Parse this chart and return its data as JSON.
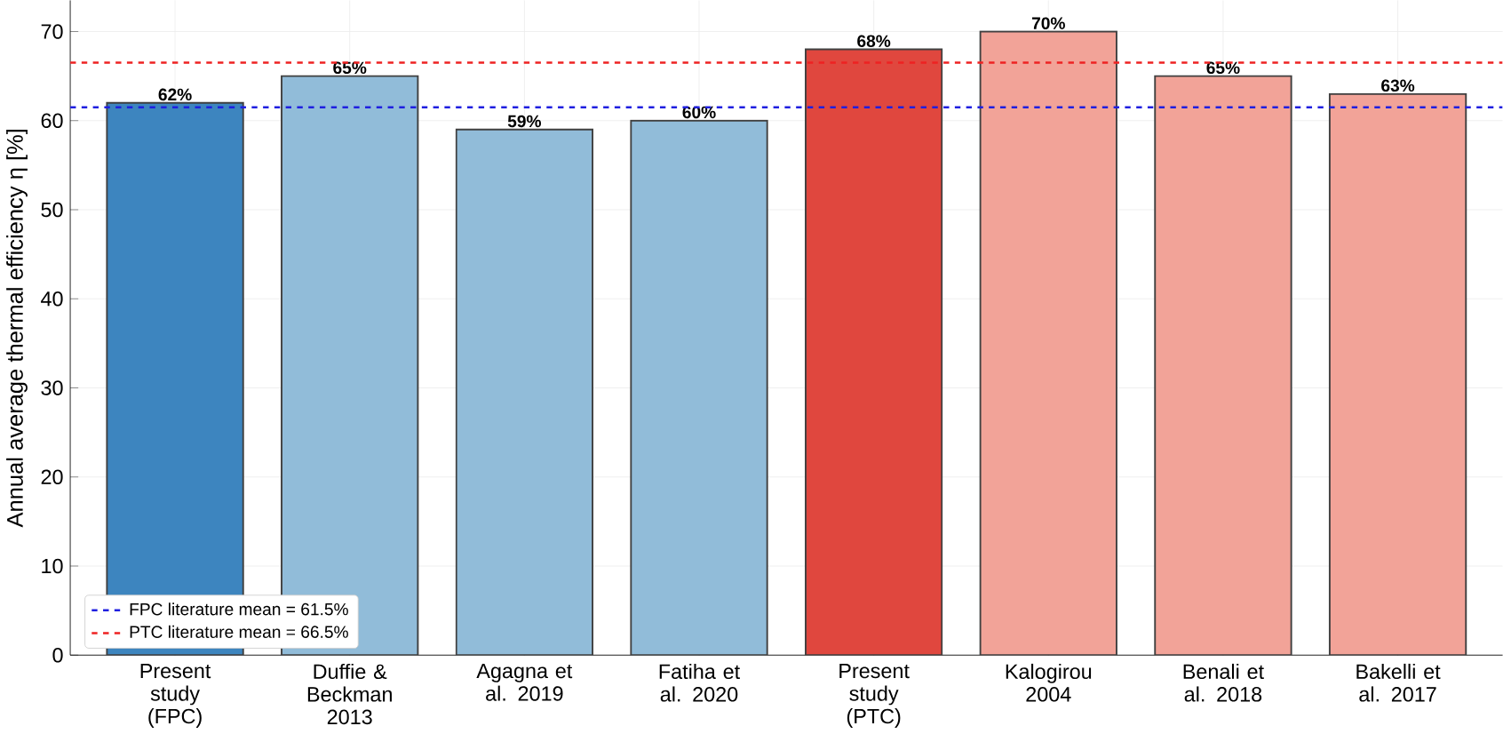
{
  "chart_data": {
    "type": "bar",
    "ylabel": "Annual average thermal efficiency  η [%]",
    "categories": [
      "Present study (FPC)",
      "Duffie & Beckman 2013",
      "Agagna et al. 2019",
      "Fatiha et al. 2020",
      "Present study (PTC)",
      "Kalogirou 2004",
      "Benali et al. 2018",
      "Bakelli et al. 2017"
    ],
    "values": [
      62,
      65,
      59,
      60,
      68,
      70,
      65,
      63
    ],
    "colors": [
      "#3d85bf",
      "#91bcd9",
      "#91bcd9",
      "#91bcd9",
      "#e0473e",
      "#f2a398",
      "#f2a398",
      "#f2a398"
    ],
    "value_labels": [
      "62%",
      "65%",
      "59%",
      "60%",
      "68%",
      "70%",
      "65%",
      "63%"
    ],
    "ylim": [
      0,
      73.5
    ],
    "yticks": [
      0,
      10,
      20,
      30,
      40,
      50,
      60,
      70
    ],
    "ref_lines": [
      {
        "axis": "y",
        "value": 61.5,
        "label": "FPC literature mean = 61.5%",
        "color": "#1f1fe0",
        "line_style": "dashed"
      },
      {
        "axis": "y",
        "value": 66.5,
        "label": "PTC literature mean = 66.5%",
        "color": "#ee2222",
        "line_style": "dashed"
      }
    ],
    "grid": true,
    "legend": "bottom left"
  }
}
